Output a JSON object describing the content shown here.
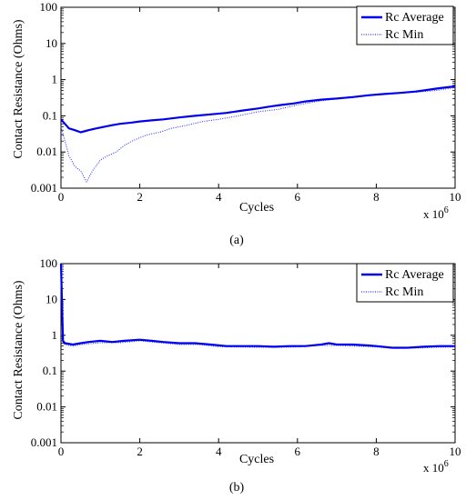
{
  "chart_data": [
    {
      "type": "line",
      "panel": "a",
      "caption": "(a)",
      "xlabel": "Cycles",
      "ylabel": "Contact Resistance (Ohms)",
      "x_multiplier_label": "x 10",
      "x_multiplier_exp": "6",
      "x_scale": "linear",
      "y_scale": "log",
      "xlim": [
        0,
        10
      ],
      "ylim": [
        0.001,
        100
      ],
      "x_ticks": [
        0,
        2,
        4,
        6,
        8,
        10
      ],
      "x_tick_labels": [
        "0",
        "2",
        "4",
        "6",
        "8",
        "10"
      ],
      "y_ticks": [
        0.001,
        0.01,
        0.1,
        1,
        10,
        100
      ],
      "y_tick_labels": [
        "0.001",
        "0.01",
        "0.1",
        "1",
        "10",
        "100"
      ],
      "grid": false,
      "legend_position": "top-right",
      "series": [
        {
          "name": "Rc Average",
          "style": "solid",
          "color": "#0000ee",
          "x": [
            0,
            0.1,
            0.2,
            0.35,
            0.5,
            0.7,
            0.9,
            1.1,
            1.3,
            1.5,
            1.8,
            2.0,
            2.3,
            2.6,
            3.0,
            3.4,
            3.8,
            4.2,
            4.6,
            5.0,
            5.3,
            5.6,
            5.9,
            6.2,
            6.6,
            7.0,
            7.4,
            7.8,
            8.2,
            8.6,
            9.0,
            9.3,
            9.6,
            10.0
          ],
          "y": [
            0.08,
            0.06,
            0.045,
            0.04,
            0.035,
            0.04,
            0.045,
            0.05,
            0.055,
            0.06,
            0.065,
            0.07,
            0.075,
            0.08,
            0.09,
            0.1,
            0.11,
            0.12,
            0.14,
            0.16,
            0.18,
            0.2,
            0.22,
            0.25,
            0.28,
            0.3,
            0.33,
            0.37,
            0.4,
            0.43,
            0.47,
            0.52,
            0.58,
            0.65
          ]
        },
        {
          "name": "Rc Min",
          "style": "dotted",
          "color": "#3333ff",
          "x": [
            0,
            0.1,
            0.2,
            0.35,
            0.5,
            0.65,
            0.8,
            1.0,
            1.2,
            1.4,
            1.6,
            1.8,
            2.0,
            2.2,
            2.5,
            2.8,
            3.2,
            3.6,
            4.0,
            4.5,
            5.0,
            5.5,
            6.0,
            6.5,
            7.0,
            7.5,
            8.0,
            8.5,
            9.0,
            9.5,
            10.0
          ],
          "y": [
            0.05,
            0.02,
            0.008,
            0.004,
            0.003,
            0.0015,
            0.003,
            0.006,
            0.008,
            0.01,
            0.015,
            0.02,
            0.025,
            0.03,
            0.035,
            0.045,
            0.055,
            0.07,
            0.08,
            0.1,
            0.13,
            0.15,
            0.2,
            0.25,
            0.3,
            0.33,
            0.38,
            0.42,
            0.45,
            0.5,
            0.6
          ]
        }
      ]
    },
    {
      "type": "line",
      "panel": "b",
      "caption": "(b)",
      "xlabel": "Cycles",
      "ylabel": "Contact Resistance (Ohms)",
      "x_multiplier_label": "x 10",
      "x_multiplier_exp": "6",
      "x_scale": "linear",
      "y_scale": "log",
      "xlim": [
        0,
        10
      ],
      "ylim": [
        0.001,
        100
      ],
      "x_ticks": [
        0,
        2,
        4,
        6,
        8,
        10
      ],
      "x_tick_labels": [
        "0",
        "2",
        "4",
        "6",
        "8",
        "10"
      ],
      "y_ticks": [
        0.001,
        0.01,
        0.1,
        1,
        10,
        100
      ],
      "y_tick_labels": [
        "0.001",
        "0.01",
        "0.1",
        "1",
        "10",
        "100"
      ],
      "grid": false,
      "legend_position": "top-right",
      "series": [
        {
          "name": "Rc Average",
          "style": "solid",
          "color": "#0000ee",
          "x": [
            0,
            0.05,
            0.1,
            0.3,
            0.5,
            0.7,
            1.0,
            1.3,
            1.6,
            2.0,
            2.3,
            2.6,
            3.0,
            3.4,
            3.8,
            4.2,
            4.6,
            5.0,
            5.4,
            5.8,
            6.2,
            6.6,
            6.8,
            7.0,
            7.4,
            7.8,
            8.0,
            8.4,
            8.8,
            9.2,
            9.6,
            10.0
          ],
          "y": [
            100,
            0.7,
            0.6,
            0.55,
            0.6,
            0.65,
            0.7,
            0.65,
            0.7,
            0.75,
            0.7,
            0.65,
            0.6,
            0.6,
            0.55,
            0.5,
            0.5,
            0.5,
            0.48,
            0.5,
            0.5,
            0.55,
            0.6,
            0.55,
            0.55,
            0.52,
            0.5,
            0.45,
            0.45,
            0.48,
            0.5,
            0.5
          ]
        },
        {
          "name": "Rc Min",
          "style": "dotted",
          "color": "#3333ff",
          "x": [
            0,
            0.05,
            0.1,
            0.3,
            0.5,
            1.0,
            1.5,
            2.0,
            2.5,
            3.0,
            3.5,
            4.0,
            4.5,
            5.0,
            5.5,
            6.0,
            6.5,
            7.0,
            7.5,
            8.0,
            8.5,
            9.0,
            9.5,
            10.0
          ],
          "y": [
            80,
            0.6,
            0.55,
            0.5,
            0.55,
            0.62,
            0.62,
            0.7,
            0.62,
            0.55,
            0.55,
            0.48,
            0.47,
            0.46,
            0.46,
            0.47,
            0.52,
            0.52,
            0.5,
            0.47,
            0.43,
            0.44,
            0.46,
            0.47
          ]
        }
      ]
    }
  ]
}
